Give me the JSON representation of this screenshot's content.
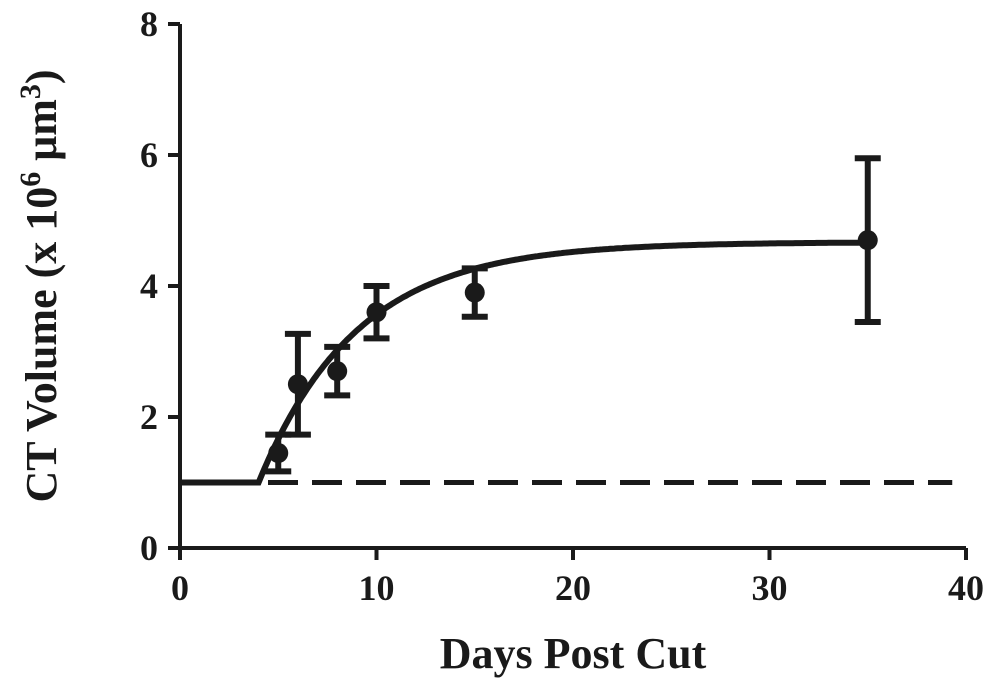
{
  "chart_data": {
    "type": "scatter",
    "title": "",
    "xlabel": "Days Post Cut",
    "ylabel_parts": {
      "main": "CT  Volume (x 10",
      "exp1": "6",
      "unit": " μm",
      "exp2": "3",
      "close": ")"
    },
    "xlim": [
      0,
      40
    ],
    "ylim": [
      0,
      8
    ],
    "x_ticks": [
      0,
      10,
      20,
      30,
      40
    ],
    "y_ticks": [
      0,
      2,
      4,
      6,
      8
    ],
    "x_tick_labels": [
      "0",
      "10",
      "20",
      "30",
      "40"
    ],
    "y_tick_labels": [
      "0",
      "2",
      "4",
      "6",
      "8"
    ],
    "grid": false,
    "series": [
      {
        "kind": "points_with_error",
        "x": [
          5,
          6,
          8,
          10,
          15,
          35
        ],
        "y": [
          1.45,
          2.5,
          2.7,
          3.6,
          3.9,
          4.7
        ],
        "err": [
          0.28,
          0.77,
          0.37,
          0.4,
          0.37,
          1.25
        ]
      },
      {
        "kind": "fit_curve",
        "model": "flat then exponential rise to plateau",
        "baseline": 1.0,
        "plateau": 4.67,
        "onset_day": 4,
        "rate": 0.2
      },
      {
        "kind": "reference_line",
        "style": "dashed",
        "y": 1.0
      }
    ]
  }
}
